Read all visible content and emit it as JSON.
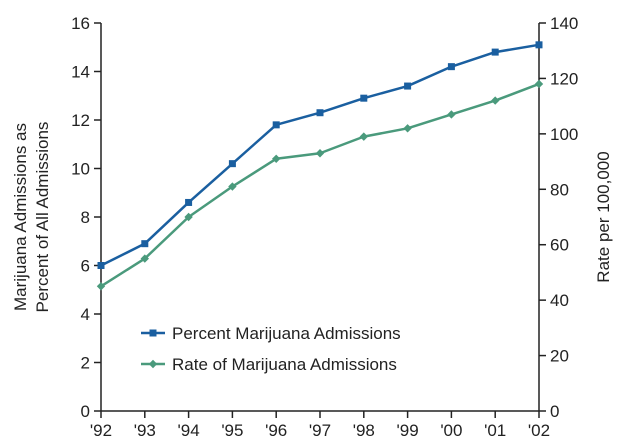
{
  "chart_data": {
    "type": "line",
    "categories": [
      "'92",
      "'93",
      "'94",
      "'95",
      "'96",
      "'97",
      "'98",
      "'99",
      "'00",
      "'01",
      "'02"
    ],
    "series": [
      {
        "name": "Percent Marijuana Admissions",
        "axis": "left",
        "color": "#1a5fa0",
        "marker": "square",
        "values": [
          6.0,
          6.9,
          8.6,
          10.2,
          11.8,
          12.3,
          12.9,
          13.4,
          14.2,
          14.8,
          15.1
        ]
      },
      {
        "name": "Rate of Marijuana Admissions",
        "axis": "right",
        "color": "#4a9a7c",
        "marker": "diamond",
        "values": [
          45,
          55,
          70,
          81,
          91,
          93,
          99,
          102,
          107,
          112,
          118
        ]
      }
    ],
    "ylabel_left": [
      "Marijuana Admissions as",
      "Percent of All Admissions"
    ],
    "ylabel_right": "Rate per 100,000",
    "ylim_left": [
      0,
      16
    ],
    "yticks_left": [
      "0",
      "2",
      "4",
      "6",
      "8",
      "10",
      "12",
      "14",
      "16"
    ],
    "ylim_right": [
      0,
      140
    ],
    "yticks_right": [
      "0",
      "20",
      "40",
      "60",
      "80",
      "100",
      "120",
      "140"
    ],
    "grid": false,
    "legend_position": "bottom-center"
  }
}
